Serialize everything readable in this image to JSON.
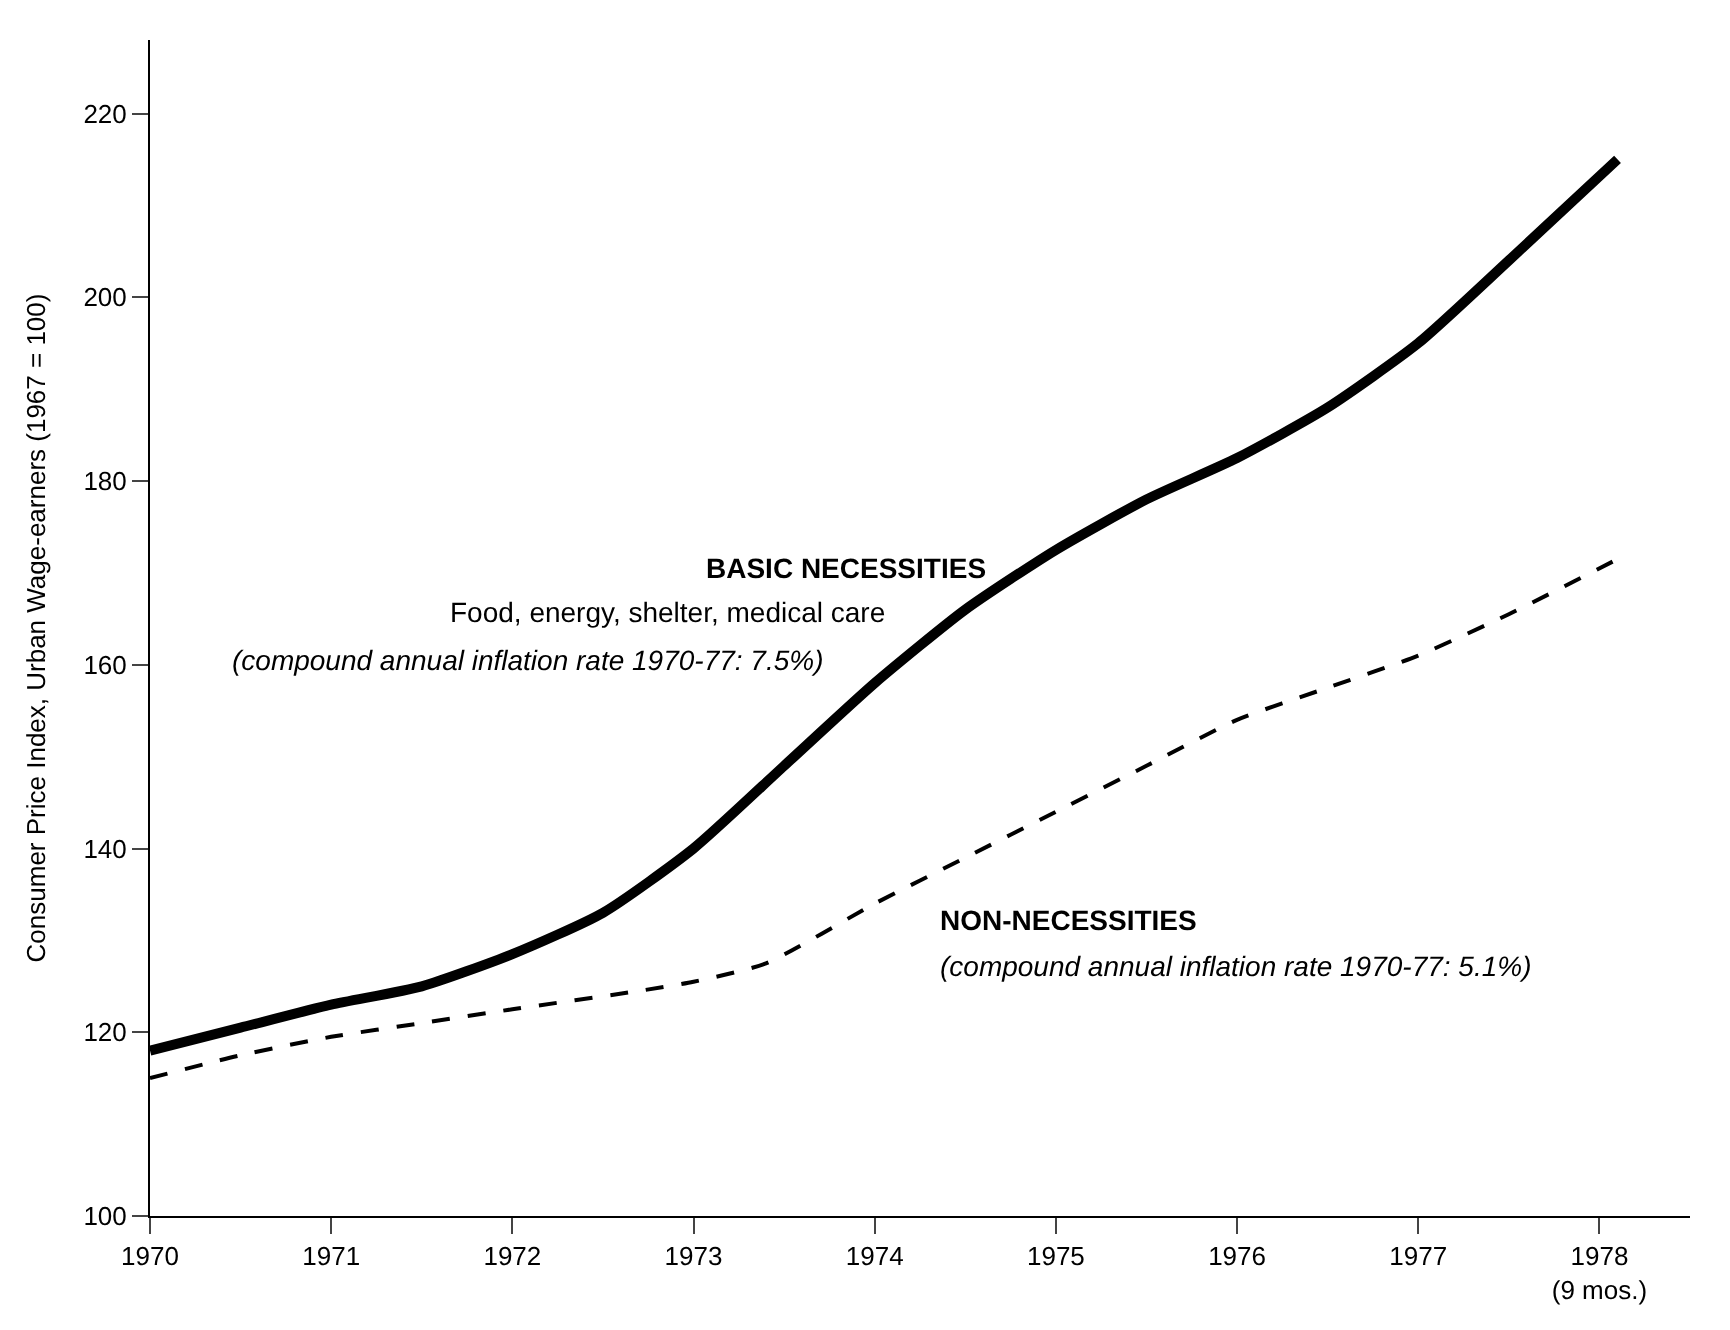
{
  "chart_data": {
    "type": "line",
    "ylabel": "Consumer Price Index, Urban Wage-earners (1967 = 100)",
    "xlim": [
      1970,
      1978.5
    ],
    "ylim": [
      100,
      228
    ],
    "xticks": [
      1970,
      1971,
      1972,
      1973,
      1974,
      1975,
      1976,
      1977,
      {
        "value": 1978,
        "label": "1978\n(9 mos.)"
      }
    ],
    "yticks": [
      100,
      120,
      140,
      160,
      180,
      200,
      220
    ],
    "legend": false,
    "marker": "none",
    "annotations": [
      "Food, energy, shelter, medical care",
      "(compound annual inflation rate 1970-77: 7.5%)",
      "(compound annual inflation rate 1970-77: 5.1%)"
    ],
    "series": [
      {
        "name": "BASIC NECESSITIES",
        "color": "#000000",
        "line_style": "solid",
        "x": [
          1970,
          1970.5,
          1971,
          1971.5,
          1972,
          1972.5,
          1973,
          1973.5,
          1974,
          1974.5,
          1975,
          1975.5,
          1976,
          1976.5,
          1977,
          1977.5,
          1978.1
        ],
        "values": [
          118,
          120.5,
          123,
          125,
          128.5,
          133,
          140,
          149,
          158,
          166,
          172.5,
          178,
          182.5,
          188,
          195,
          204,
          215
        ]
      },
      {
        "name": "NON-NECESSITIES",
        "color": "#000000",
        "line_style": "dashed",
        "x": [
          1970,
          1970.5,
          1971,
          1971.5,
          1972,
          1972.7,
          1973,
          1973.4,
          1974,
          1974.5,
          1975,
          1975.5,
          1976,
          1976.5,
          1977,
          1977.5,
          1978.1
        ],
        "values": [
          115,
          117.5,
          119.5,
          121,
          122.5,
          124.5,
          125.5,
          127.5,
          134,
          139,
          144,
          149,
          154,
          157.5,
          161,
          165.5,
          171.5
        ]
      }
    ]
  }
}
